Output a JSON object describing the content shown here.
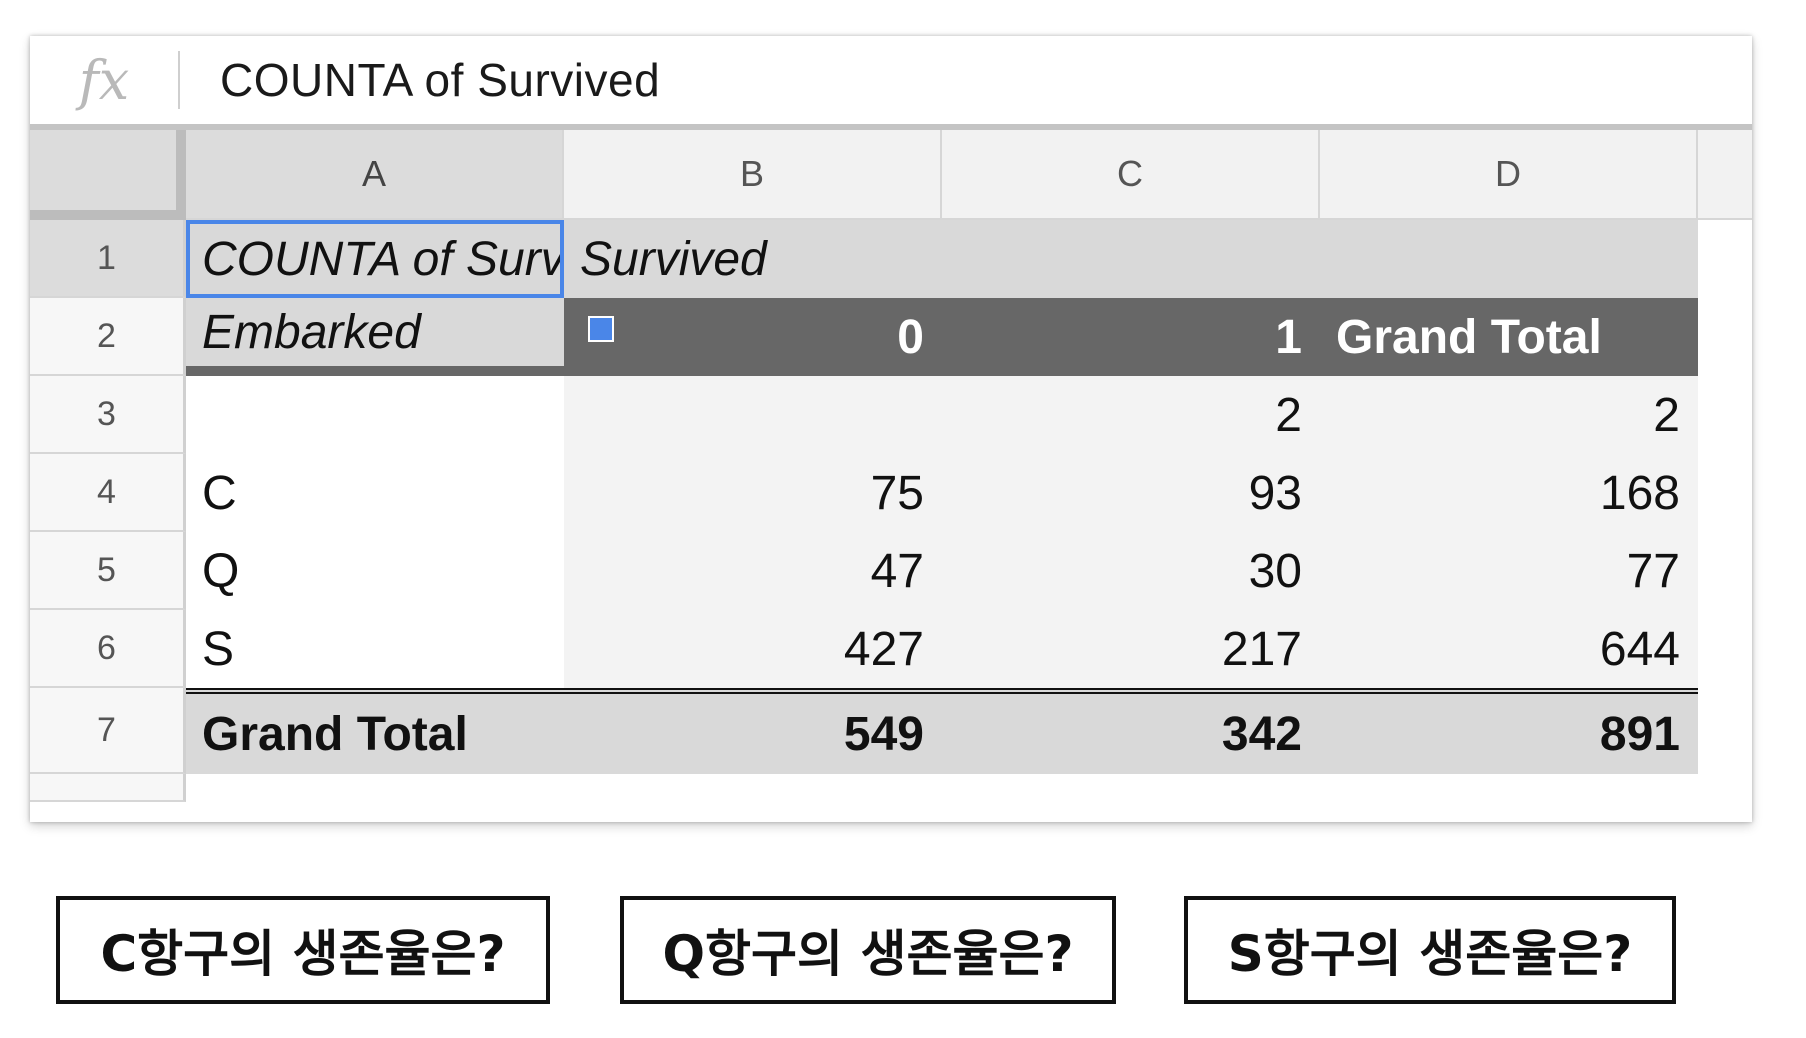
{
  "formula_bar": {
    "icon_label": "fx",
    "text": "COUNTA of Survived"
  },
  "columns": [
    "A",
    "B",
    "C",
    "D"
  ],
  "rows": [
    {
      "num": "1",
      "a": "COUNTA of Surv",
      "b": "Survived",
      "c": "",
      "d": ""
    },
    {
      "num": "2",
      "a": "Embarked",
      "b": "0",
      "c": "1",
      "d": "Grand Total"
    },
    {
      "num": "3",
      "a": "",
      "b": "",
      "c": "2",
      "d": "2"
    },
    {
      "num": "4",
      "a": "C",
      "b": "75",
      "c": "93",
      "d": "168"
    },
    {
      "num": "5",
      "a": "Q",
      "b": "47",
      "c": "30",
      "d": "77"
    },
    {
      "num": "6",
      "a": "S",
      "b": "427",
      "c": "217",
      "d": "644"
    },
    {
      "num": "7",
      "a": "Grand Total",
      "b": "549",
      "c": "342",
      "d": "891"
    }
  ],
  "questions": [
    "C항구의 생존율은?",
    "Q항구의 생존율은?",
    "S항구의 생존율은?"
  ],
  "colors": {
    "selection": "#4a86e8",
    "pivot_header": "#676767",
    "pivot_light": "#d9d9d9"
  }
}
